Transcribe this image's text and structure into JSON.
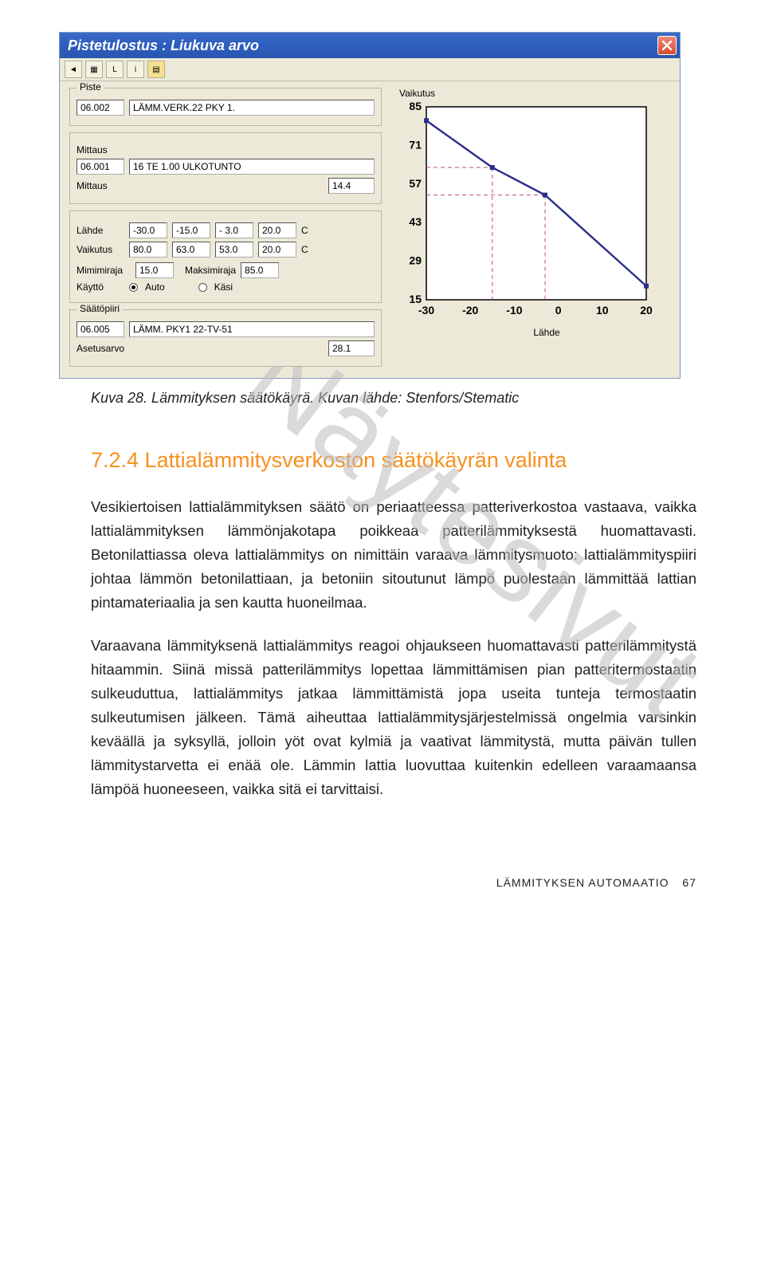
{
  "window": {
    "title": "Pistetulostus : Liukuva arvo",
    "toolbar": {
      "buttons": [
        "◄",
        "▦",
        "L",
        "i",
        "▤"
      ]
    },
    "piste": {
      "group_label": "Piste",
      "id": "06.002",
      "name": "LÄMM.VERK.22 PKY 1."
    },
    "mittaus": {
      "label1": "Mittaus",
      "id": "06.001",
      "name": "16 TE 1.00 ULKOTUNTO",
      "label2": "Mittaus",
      "value": "14.4"
    },
    "curve": {
      "lahde_label": "Lähde",
      "vaikutus_label": "Vaikutus",
      "lahde_values": [
        "-30.0",
        "-15.0",
        "- 3.0",
        "20.0"
      ],
      "vaikutus_values": [
        "80.0",
        "63.0",
        "53.0",
        "20.0"
      ],
      "unit1": "C",
      "unit2": "C",
      "min_label": "Mimimiraja",
      "min_value": "15.0",
      "max_label": "Maksimiraja",
      "max_value": "85.0",
      "kaytto_label": "Käyttö",
      "auto_label": "Auto",
      "kasi_label": "Käsi",
      "mode": "auto"
    },
    "saatopiiri": {
      "group_label": "Säätöpiiri",
      "id": "06.005",
      "name": "LÄMM. PKY1 22-TV-51",
      "asetus_label": "Asetusarvo",
      "asetus_value": "28.1"
    },
    "chart": {
      "title": "Vaikutus",
      "x_axis_label": "Lähde",
      "y_ticks": [
        85,
        71,
        57,
        43,
        29,
        15
      ],
      "x_ticks": [
        -30,
        -20,
        -10,
        0,
        10,
        20
      ],
      "line_color": "#2a2e8a",
      "dash_color": "#b84b8b",
      "points": [
        {
          "x": -30,
          "y": 80
        },
        {
          "x": -15,
          "y": 63
        },
        {
          "x": -3,
          "y": 53
        },
        {
          "x": 20,
          "y": 20
        }
      ]
    }
  },
  "caption": "Kuva 28. Lämmityksen säätökäyrä. Kuvan lähde: Stenfors/Stematic",
  "section_heading": "7.2.4  Lattialämmitysverkoston säätökäyrän valinta",
  "para1": "Vesikiertoisen lattialämmityksen säätö on periaatteessa patteriverkostoa vastaava, vaikka lattialämmityksen lämmönjakotapa poikkeaa patterilämmityksestä huomattavasti. Betonilattiassa oleva lattialämmitys on nimittäin varaava lämmitysmuoto: lattialämmityspiiri johtaa lämmön betonilattiaan, ja betoniin sitoutunut lämpö puolestaan lämmittää lattian pintamateriaalia ja sen kautta huoneilmaa.",
  "para2": "Varaavana lämmityksenä lattialämmitys reagoi ohjaukseen huomattavasti patterilämmitystä hitaammin. Siinä missä patterilämmitys lopettaa lämmittämisen pian patteritermostaatin sulkeuduttua, lattialämmitys jatkaa lämmittämistä jopa useita tunteja termostaatin sulkeutumisen jälkeen. Tämä aiheuttaa lattialämmitysjärjestelmissä ongelmia varsinkin keväällä ja syksyllä, jolloin yöt ovat kylmiä ja vaativat lämmitystä, mutta päivän tullen lämmitystarvetta ei enää ole. Lämmin lattia luovuttaa kuitenkin edelleen varaamaansa lämpöä huoneeseen, vaikka sitä ei tarvittaisi.",
  "watermark": "Näytesivut",
  "footer_label": "LÄMMITYKSEN AUTOMAATIO",
  "footer_page": "67"
}
